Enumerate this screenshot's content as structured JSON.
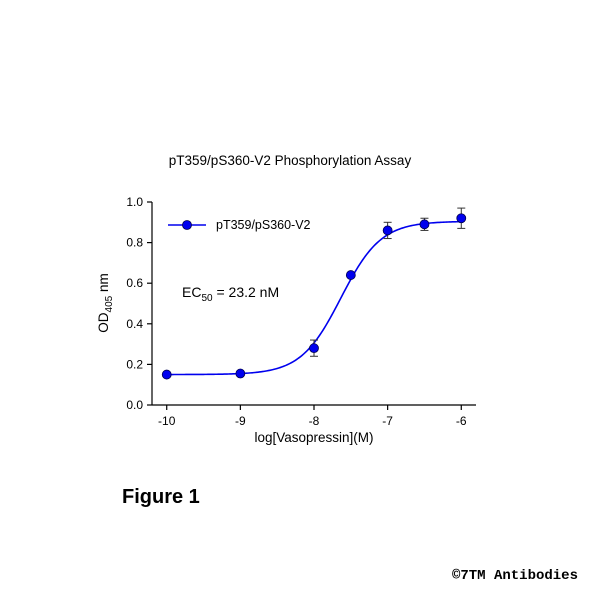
{
  "chart_data": {
    "type": "line",
    "title": "pT359/pS360-V2 Phosphorylation Assay",
    "xlabel": "log[Vasopressin](M)",
    "ylabel_main": "OD",
    "ylabel_sub": "405",
    "ylabel_unit": " nm",
    "xlim": [
      -10.2,
      -5.8
    ],
    "ylim": [
      0.0,
      1.0
    ],
    "xticks": [
      -10,
      -9,
      -8,
      -7,
      -6
    ],
    "xtick_labels": [
      "-10",
      "-9",
      "-8",
      "-7",
      "-6"
    ],
    "yticks": [
      0.0,
      0.2,
      0.4,
      0.6,
      0.8,
      1.0
    ],
    "ytick_labels": [
      "0.0",
      "0.2",
      "0.4",
      "0.6",
      "0.8",
      "1.0"
    ],
    "grid": false,
    "legend_position": "top-left",
    "series": [
      {
        "name": "pT359/pS360-V2",
        "color": "#0000ee",
        "x": [
          -10,
          -9,
          -8,
          -7.5,
          -7,
          -6.5,
          -6
        ],
        "y": [
          0.15,
          0.155,
          0.28,
          0.64,
          0.86,
          0.89,
          0.92
        ],
        "error": [
          0.0,
          0.0,
          0.04,
          0.0,
          0.04,
          0.03,
          0.05
        ]
      }
    ],
    "annotation": {
      "prefix": "EC",
      "sub": "50",
      "suffix": " = 23.2 nM"
    }
  },
  "figure_label": "Figure 1",
  "copyright": "©7TM Antibodies"
}
